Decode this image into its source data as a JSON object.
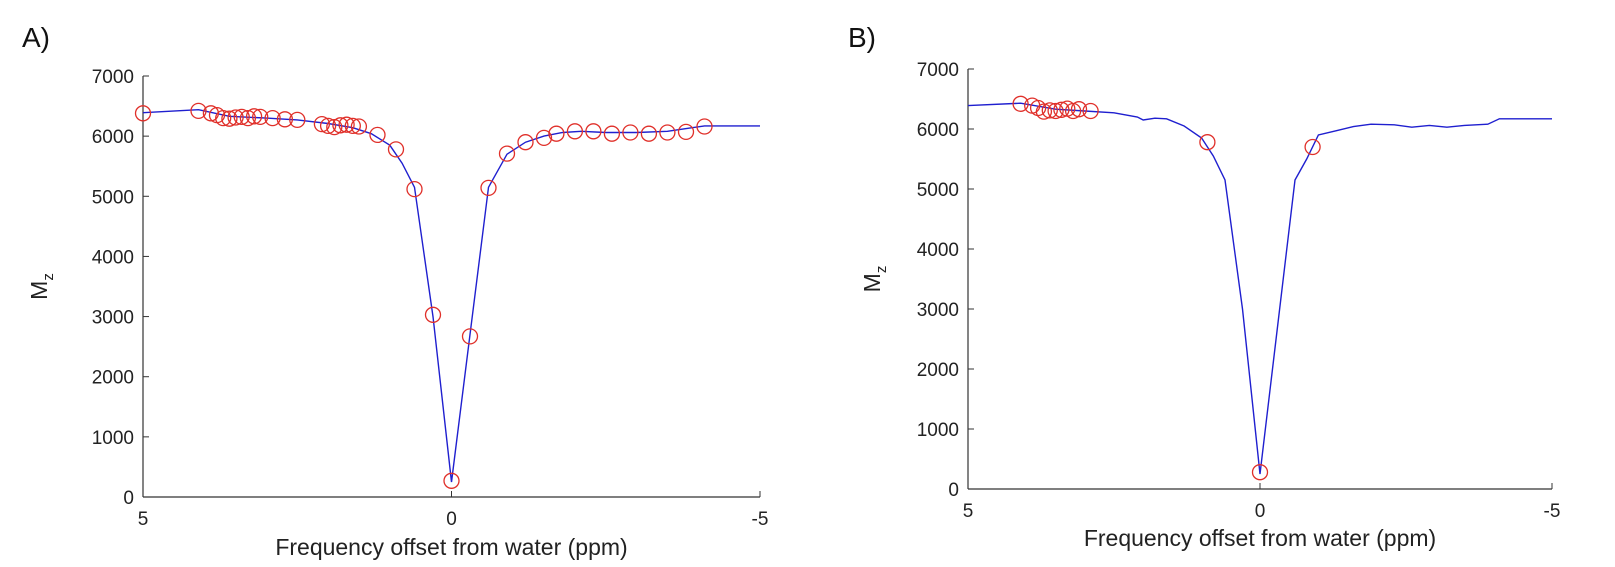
{
  "chart_data": [
    {
      "panel_label": "A)",
      "type": "line+scatter",
      "xlabel": "Frequency offset from water (ppm)",
      "ylabel_main": "M",
      "ylabel_sub": "z",
      "xlim": [
        5,
        -5
      ],
      "ylim": [
        0,
        7000
      ],
      "xticks": [
        "5",
        "0",
        "-5"
      ],
      "yticks": [
        "0",
        "1000",
        "2000",
        "3000",
        "4000",
        "5000",
        "6000",
        "7000"
      ],
      "grid": false,
      "series": [
        {
          "kind": "fit-line",
          "color": "#1f1fcf",
          "x": [
            5,
            4.1,
            3.6,
            3.0,
            2.5,
            2.0,
            1.6,
            1.3,
            1.0,
            0.8,
            0.6,
            0.3,
            0.0,
            -0.3,
            -0.6,
            -0.9,
            -1.2,
            -1.5,
            -1.8,
            -2.1,
            -2.5,
            -3.0,
            -3.5,
            -4.1,
            -5.0
          ],
          "y": [
            6390,
            6440,
            6330,
            6300,
            6270,
            6210,
            6140,
            6040,
            5850,
            5550,
            5150,
            3000,
            250,
            2700,
            5150,
            5700,
            5900,
            6000,
            6060,
            6080,
            6060,
            6060,
            6080,
            6170,
            6170
          ]
        },
        {
          "kind": "measured",
          "color": "#e0302a",
          "marker": "circle-open",
          "x": [
            5.0,
            4.1,
            3.9,
            3.8,
            3.7,
            3.6,
            3.5,
            3.4,
            3.3,
            3.2,
            3.1,
            2.9,
            2.7,
            2.5,
            2.1,
            2.0,
            1.9,
            1.8,
            1.7,
            1.6,
            1.5,
            1.2,
            0.9,
            0.6,
            0.3,
            0.0,
            -0.3,
            -0.6,
            -0.9,
            -1.2,
            -1.5,
            -1.7,
            -2.0,
            -2.3,
            -2.6,
            -2.9,
            -3.2,
            -3.5,
            -3.8,
            -4.1
          ],
          "y": [
            6380,
            6420,
            6380,
            6350,
            6300,
            6290,
            6310,
            6320,
            6300,
            6330,
            6320,
            6300,
            6280,
            6270,
            6200,
            6170,
            6150,
            6180,
            6190,
            6170,
            6160,
            6020,
            5780,
            5120,
            3030,
            270,
            2670,
            5140,
            5710,
            5900,
            5970,
            6040,
            6080,
            6080,
            6040,
            6060,
            6040,
            6060,
            6070,
            6160
          ]
        }
      ]
    },
    {
      "panel_label": "B)",
      "type": "line+scatter",
      "xlabel": "Frequency offset from water (ppm)",
      "ylabel_main": "M",
      "ylabel_sub": "z",
      "xlim": [
        5,
        -5
      ],
      "ylim": [
        0,
        7000
      ],
      "xticks": [
        "5",
        "0",
        "-5"
      ],
      "yticks": [
        "0",
        "1000",
        "2000",
        "3000",
        "4000",
        "5000",
        "6000",
        "7000"
      ],
      "grid": false,
      "series": [
        {
          "kind": "fit-line",
          "color": "#1f1fcf",
          "x": [
            5,
            4.1,
            3.5,
            3.0,
            2.5,
            2.1,
            2.0,
            1.8,
            1.6,
            1.3,
            1.0,
            0.8,
            0.6,
            0.3,
            0.0,
            -0.3,
            -0.6,
            -0.8,
            -1.0,
            -1.3,
            -1.6,
            -1.9,
            -2.3,
            -2.6,
            -2.9,
            -3.2,
            -3.5,
            -3.9,
            -4.1,
            -5.0
          ],
          "y": [
            6390,
            6430,
            6330,
            6300,
            6270,
            6200,
            6150,
            6180,
            6170,
            6050,
            5850,
            5550,
            5150,
            3000,
            250,
            2700,
            5150,
            5500,
            5900,
            5970,
            6040,
            6080,
            6070,
            6030,
            6060,
            6030,
            6060,
            6080,
            6170,
            6170
          ]
        },
        {
          "kind": "measured",
          "color": "#e0302a",
          "marker": "circle-open",
          "x": [
            4.1,
            3.9,
            3.8,
            3.7,
            3.6,
            3.5,
            3.4,
            3.3,
            3.2,
            3.1,
            2.9,
            0.9,
            0.0,
            -0.9
          ],
          "y": [
            6420,
            6390,
            6350,
            6290,
            6310,
            6300,
            6320,
            6340,
            6300,
            6330,
            6300,
            5780,
            280,
            5700
          ]
        }
      ]
    }
  ]
}
